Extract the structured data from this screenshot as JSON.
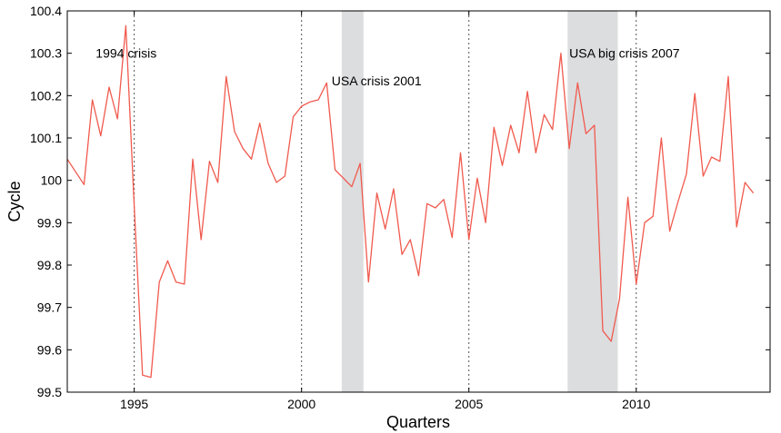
{
  "chart_data": {
    "type": "line",
    "title": "",
    "xlabel": "Quarters",
    "ylabel": "Cycle",
    "xlim": [
      1993.0,
      2014.0
    ],
    "ylim": [
      99.5,
      100.4
    ],
    "x_ticks": [
      1995,
      2000,
      2005,
      2010
    ],
    "x_tick_labels": [
      "1995",
      "2000",
      "2005",
      "2010"
    ],
    "y_ticks": [
      99.5,
      99.6,
      99.7,
      99.8,
      99.9,
      100.0,
      100.1,
      100.2,
      100.3,
      100.4
    ],
    "y_tick_labels": [
      "99.5",
      "99.6",
      "99.7",
      "99.8",
      "99.9",
      "100",
      "100.1",
      "100.2",
      "100.3",
      "100.4"
    ],
    "vertical_gridlines": true,
    "line_color": "#f05a4e",
    "shade_color": "#dcdddf",
    "shaded_periods": [
      {
        "start": 2001.2,
        "end": 2001.85
      },
      {
        "start": 2007.95,
        "end": 2009.45
      }
    ],
    "annotations": [
      {
        "text": "1994 crisis",
        "x": 1993.85,
        "y": 100.3
      },
      {
        "text": "USA crisis 2001",
        "x": 2000.9,
        "y": 100.235
      },
      {
        "text": "USA big crisis 2007",
        "x": 2008.0,
        "y": 100.3
      }
    ],
    "series": [
      {
        "name": "Cycle",
        "x": [
          1993.0,
          1993.5,
          1993.75,
          1994.0,
          1994.25,
          1994.5,
          1994.75,
          1995.0,
          1995.25,
          1995.5,
          1995.75,
          1996.0,
          1996.25,
          1996.5,
          1996.75,
          1997.0,
          1997.25,
          1997.5,
          1997.75,
          1998.0,
          1998.25,
          1998.5,
          1998.75,
          1999.0,
          1999.25,
          1999.5,
          1999.75,
          2000.0,
          2000.25,
          2000.5,
          2000.75,
          2001.0,
          2001.25,
          2001.5,
          2001.75,
          2002.0,
          2002.25,
          2002.5,
          2002.75,
          2003.0,
          2003.25,
          2003.5,
          2003.75,
          2004.0,
          2004.25,
          2004.5,
          2004.75,
          2005.0,
          2005.25,
          2005.5,
          2005.75,
          2006.0,
          2006.25,
          2006.5,
          2006.75,
          2007.0,
          2007.25,
          2007.5,
          2007.75,
          2008.0,
          2008.25,
          2008.5,
          2008.75,
          2009.0,
          2009.25,
          2009.5,
          2009.75,
          2010.0,
          2010.25,
          2010.5,
          2010.75,
          2011.0,
          2011.25,
          2011.5,
          2011.75,
          2012.0,
          2012.25,
          2012.5,
          2012.75,
          2013.0,
          2013.25,
          2013.5
        ],
        "values": [
          100.05,
          99.99,
          100.19,
          100.105,
          100.22,
          100.145,
          100.365,
          99.94,
          99.54,
          99.535,
          99.76,
          99.81,
          99.76,
          99.755,
          100.05,
          99.86,
          100.045,
          99.995,
          100.245,
          100.115,
          100.075,
          100.05,
          100.135,
          100.04,
          99.995,
          100.01,
          100.15,
          100.175,
          100.185,
          100.19,
          100.23,
          100.025,
          100.005,
          99.985,
          100.04,
          99.76,
          99.97,
          99.885,
          99.98,
          99.825,
          99.86,
          99.775,
          99.945,
          99.935,
          99.955,
          99.865,
          100.065,
          99.86,
          100.005,
          99.9,
          100.125,
          100.035,
          100.13,
          100.065,
          100.21,
          100.065,
          100.155,
          100.12,
          100.3,
          100.075,
          100.23,
          100.11,
          100.13,
          99.645,
          99.62,
          99.72,
          99.96,
          99.755,
          99.9,
          99.915,
          100.1,
          99.88,
          99.95,
          100.015,
          100.205,
          100.01,
          100.055,
          100.045,
          100.245,
          99.89,
          99.995,
          99.97
        ]
      }
    ]
  }
}
